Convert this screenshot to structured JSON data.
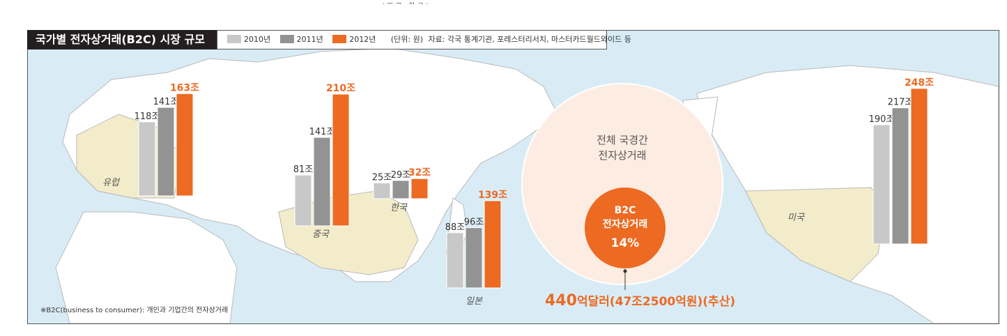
{
  "top_text": "( 자 료 : 한 국 )",
  "title": "국가별 전자상거래(B2C) 시장 규모",
  "legend": {
    "items": [
      {
        "label": "2010년",
        "color": "#c8c8c8"
      },
      {
        "label": "2011년",
        "color": "#939393"
      },
      {
        "label": "2012년",
        "color": "#ec6a22"
      }
    ],
    "unit": "(단위: 원)",
    "source": "자료: 각국 통계기관, 포레스터리서치, 마스터카드월드와이드 등"
  },
  "chart_data": {
    "type": "bar",
    "title": "국가별 전자상거래(B2C) 시장 규모",
    "series_names": [
      "2010년",
      "2011년",
      "2012년"
    ],
    "unit": "조 원",
    "groups": [
      {
        "region": "유럽",
        "values": [
          118,
          141,
          163
        ],
        "labels": [
          "118조",
          "141조",
          "163조"
        ]
      },
      {
        "region": "중국",
        "values": [
          81,
          141,
          210
        ],
        "labels": [
          "81조",
          "141조",
          "210조"
        ]
      },
      {
        "region": "한국",
        "values": [
          25,
          29,
          32
        ],
        "labels": [
          "25조",
          "29조",
          "32조"
        ]
      },
      {
        "region": "일본",
        "values": [
          88,
          96,
          139
        ],
        "labels": [
          "88조",
          "96조",
          "139조"
        ]
      },
      {
        "region": "미국",
        "values": [
          190,
          217,
          248
        ],
        "labels": [
          "190조",
          "217조",
          "248조"
        ]
      }
    ],
    "circle": {
      "outer_label_1": "전체 국경간",
      "outer_label_2": "전자상거래",
      "inner_label_1": "B2C",
      "inner_label_2": "전자상거래",
      "inner_percent": "14%",
      "share": 14
    },
    "note_main": "440",
    "note_rest": "억달러(47조2500억원)(추산)",
    "footnote": "※B2C(business to consumer): 개인과 기업간의 전자상거래"
  },
  "colors": {
    "bar2010": "#c8c8c8",
    "bar2011": "#939393",
    "bar2012": "#ec6a22",
    "land": "#ffffff",
    "land_highlight": "#f3eccb",
    "sea": "#d9ecf6"
  }
}
